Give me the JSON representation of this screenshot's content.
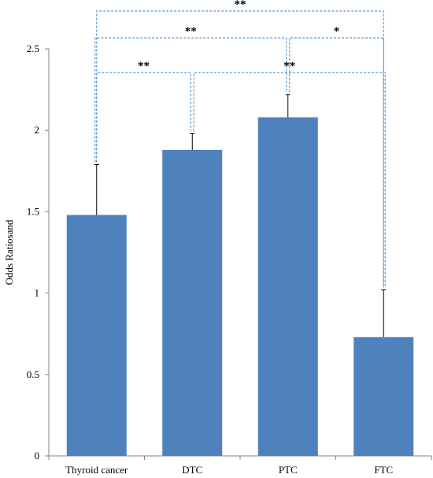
{
  "chart_data": {
    "type": "bar",
    "categories": [
      "Thyroid cancer",
      "DTC",
      "PTC",
      "FTC"
    ],
    "values": [
      1.48,
      1.88,
      2.08,
      0.73
    ],
    "errors": [
      0.31,
      0.1,
      0.14,
      0.29
    ],
    "ylabel": "Odds Ratiosand",
    "xlabel": "",
    "ylim": [
      0,
      2.5
    ],
    "yticks": [
      "0",
      "0.5",
      "1",
      "1.5",
      "2",
      "2.5"
    ],
    "bar_color": "#4f81bd",
    "bracket_color": "#5b9bd5",
    "significance": [
      {
        "from": "Thyroid cancer",
        "to": "FTC",
        "label": "**"
      },
      {
        "from": "Thyroid cancer",
        "to": "PTC",
        "label": "**"
      },
      {
        "from": "PTC",
        "to": "FTC",
        "label": "*"
      },
      {
        "from": "Thyroid cancer",
        "to": "DTC",
        "label": "**"
      },
      {
        "from": "DTC",
        "to": "FTC",
        "label": "**"
      }
    ]
  }
}
